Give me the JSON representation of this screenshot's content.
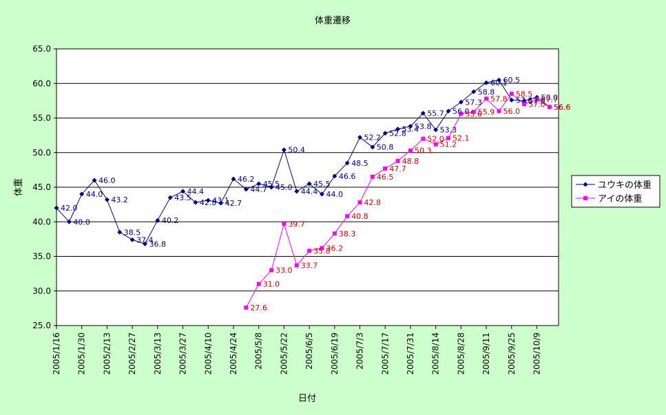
{
  "chart_data": {
    "type": "line",
    "title": "体重遷移",
    "xlabel": "日付",
    "ylabel": "体重",
    "ylim": [
      25.0,
      65.0
    ],
    "ystep": 5.0,
    "xlim": [
      "2005-01-16",
      "2005-10-21"
    ],
    "x_ticks": [
      "2005-01-16",
      "2005-01-30",
      "2005-02-13",
      "2005-02-27",
      "2005-03-13",
      "2005-03-27",
      "2005-04-10",
      "2005-04-24",
      "2005-05-08",
      "2005-05-22",
      "2005-06-05",
      "2005-06-19",
      "2005-07-03",
      "2005-07-17",
      "2005-07-31",
      "2005-08-14",
      "2005-08-28",
      "2005-09-11",
      "2005-09-25",
      "2005-10-09"
    ],
    "x_tick_labels": [
      "2005/1/16",
      "2005/1/30",
      "2005/2/13",
      "2005/2/27",
      "2005/3/13",
      "2005/3/27",
      "2005/4/10",
      "2005/4/24",
      "2005/5/8",
      "2005/5/22",
      "2005/6/5",
      "2005/6/19",
      "2005/7/3",
      "2005/7/17",
      "2005/7/31",
      "2005/8/14",
      "2005/8/28",
      "2005/9/11",
      "2005/9/25",
      "2005/10/9"
    ],
    "y_tick_labels": [
      "25.0",
      "30.0",
      "35.0",
      "40.0",
      "45.0",
      "50.0",
      "55.0",
      "60.0",
      "65.0"
    ],
    "grid": true,
    "legend_position": "right",
    "series": [
      {
        "name": "ユウキの体重",
        "color": "#000080",
        "marker": "diamond",
        "x": [
          "2005-01-16",
          "2005-01-23",
          "2005-01-30",
          "2005-02-06",
          "2005-02-13",
          "2005-02-20",
          "2005-02-27",
          "2005-03-06",
          "2005-03-13",
          "2005-03-20",
          "2005-03-27",
          "2005-04-03",
          "2005-04-10",
          "2005-04-17",
          "2005-04-24",
          "2005-05-01",
          "2005-05-08",
          "2005-05-15",
          "2005-05-22",
          "2005-05-29",
          "2005-06-05",
          "2005-06-12",
          "2005-06-19",
          "2005-06-26",
          "2005-07-03",
          "2005-07-10",
          "2005-07-17",
          "2005-07-24",
          "2005-07-31",
          "2005-08-07",
          "2005-08-14",
          "2005-08-21",
          "2005-08-28",
          "2005-09-04",
          "2005-09-11",
          "2005-09-18",
          "2005-09-25",
          "2005-10-02",
          "2005-10-09",
          "2005-10-16"
        ],
        "values": [
          42.0,
          40.0,
          44.0,
          46.0,
          43.2,
          38.5,
          37.4,
          36.8,
          40.2,
          43.5,
          44.4,
          42.8,
          43.1,
          42.7,
          46.2,
          44.7,
          45.5,
          45.0,
          50.4,
          44.4,
          45.5,
          44.0,
          46.6,
          48.5,
          52.2,
          50.8,
          52.8,
          53.4,
          53.8,
          55.7,
          53.3,
          56.0,
          57.3,
          58.8,
          60.1,
          60.5,
          57.6,
          57.5,
          58.0,
          56.6
        ],
        "labels": [
          "42.0",
          "40.0",
          "44.0",
          "46.0",
          "43.2",
          "38.5",
          "37.4",
          "36.8",
          "40.2",
          "43.5",
          "44.4",
          "42.8",
          "43.1",
          "42.7",
          "46.2",
          "44.7",
          "45.5",
          "45.0",
          "50.4",
          "44.4",
          "45.5",
          "44.0",
          "46.6",
          "48.5",
          "52.2",
          "50.8",
          "52.8",
          "53.4",
          "53.8",
          "55.7",
          "53.3",
          "56.0",
          "57.3",
          "58.8",
          "60.1",
          "60.5",
          "57.6",
          "57.5",
          "58.0",
          "56.6"
        ]
      },
      {
        "name": "アイの体重",
        "color": "#ff00ff",
        "marker": "square",
        "x": [
          "2005-05-01",
          "2005-05-08",
          "2005-05-15",
          "2005-05-22",
          "2005-05-29",
          "2005-06-05",
          "2005-06-12",
          "2005-06-19",
          "2005-06-26",
          "2005-07-03",
          "2005-07-10",
          "2005-07-17",
          "2005-07-24",
          "2005-07-31",
          "2005-08-07",
          "2005-08-14",
          "2005-08-21",
          "2005-08-28",
          "2005-09-04",
          "2005-09-11",
          "2005-09-18",
          "2005-09-25",
          "2005-10-02",
          "2005-10-09",
          "2005-10-16"
        ],
        "values": [
          27.6,
          31.0,
          33.0,
          39.7,
          33.7,
          35.8,
          36.2,
          38.3,
          40.8,
          42.8,
          46.5,
          47.7,
          48.8,
          50.3,
          52.0,
          51.2,
          52.1,
          55.6,
          55.9,
          57.8,
          56.0,
          58.5,
          57.0,
          57.7,
          56.6
        ],
        "labels": [
          "27.6",
          "31.0",
          "33.0",
          "39.7",
          "33.7",
          "35.8",
          "36.2",
          "38.3",
          "40.8",
          "42.8",
          "46.5",
          "47.7",
          "48.8",
          "50.3",
          "52.0",
          "51.2",
          "52.1",
          "55.6",
          "55.9",
          "57.8",
          "56.0",
          "58.5",
          "57.0",
          "57.7",
          "56.6"
        ]
      }
    ]
  }
}
